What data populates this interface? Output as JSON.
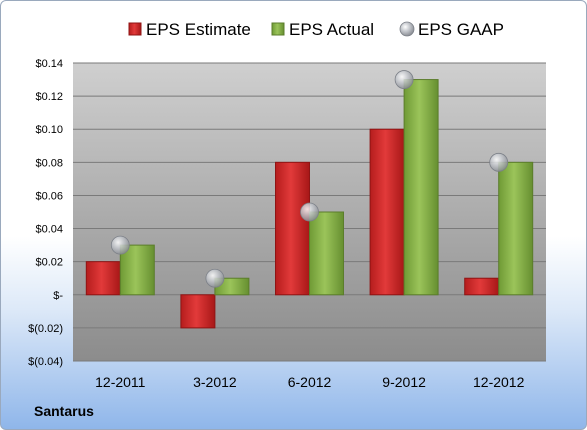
{
  "company": "Santarus",
  "chart_data": {
    "type": "bar",
    "categories": [
      "12-2011",
      "3-2012",
      "6-2012",
      "9-2012",
      "12-2012"
    ],
    "series": [
      {
        "name": "EPS Estimate",
        "kind": "bar",
        "color": "#d42b2b",
        "values": [
          0.02,
          -0.02,
          0.08,
          0.1,
          0.01
        ]
      },
      {
        "name": "EPS Actual",
        "kind": "bar",
        "color": "#8db64c",
        "values": [
          0.03,
          0.01,
          0.05,
          0.13,
          0.08
        ]
      },
      {
        "name": "EPS GAAP",
        "kind": "marker",
        "color": "#b9bec6",
        "values": [
          0.03,
          0.01,
          0.05,
          0.13,
          0.08
        ]
      }
    ],
    "ylim": [
      -0.04,
      0.14
    ],
    "yticks": [
      0.14,
      0.12,
      0.1,
      0.08,
      0.06,
      0.04,
      0.02,
      0,
      -0.02,
      -0.04
    ],
    "ytick_labels": [
      "$0.14",
      "$0.12",
      "$0.10",
      "$0.08",
      "$0.06",
      "$0.04",
      "$0.02",
      "$-",
      "$(0.02)",
      "$(0.04)"
    ],
    "grid": true,
    "legend_position": "top"
  }
}
